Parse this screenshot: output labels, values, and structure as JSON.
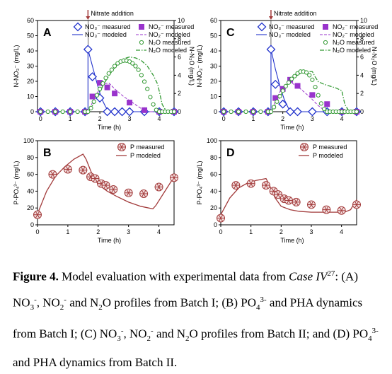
{
  "figure": {
    "nitrate_addition_label": "Nitrate addition",
    "top_xlabel": "Time (h)",
    "bottom_xlabel": "Time (h)",
    "colors": {
      "no3": "#2233cc",
      "no2": "#9933cc",
      "n2o": "#339933",
      "p": "#a23b3b"
    }
  },
  "caption": {
    "figure_label": "Figure 4.",
    "seg1": " Model evaluation with experimental data from ",
    "case": "Case IV",
    "ref": "27",
    "seg2": ": (A) NO",
    "sub3a": "3",
    "supminus_a": "-",
    "seg3": ", NO",
    "sub2a": "2",
    "supminus_b": "-",
    "seg4": " and N",
    "sub2b": "2",
    "seg5": "O profiles from Batch I; (B) PO",
    "sub4a": "4",
    "sup3a": "3-",
    "seg6": " and PHA dynamics from Batch I; (C) NO",
    "sub3b": "3",
    "supminus_c": "-",
    "seg7": ", NO",
    "sub2c": "2",
    "supminus_d": "-",
    "seg8": " and N",
    "sub2d": "2",
    "seg9": "O profiles from Batch II; and (D) PO",
    "sub4b": "4",
    "sup3b": "3-",
    "seg10": " and PHA dynamics from Batch II."
  },
  "chart_data": [
    {
      "panel": "A",
      "type": "scatter",
      "xlabel": "Time (h)",
      "ylabel_left": "N-NO₃⁻ (mg/L)",
      "ylabel_right": "N-N₂O (mg/L)",
      "xlim": [
        -0.1,
        4.5
      ],
      "ylim_left": [
        0,
        60
      ],
      "ylim_right": [
        0,
        10
      ],
      "xticks": [
        0,
        1,
        2,
        3,
        4
      ],
      "yticks_left": [
        0,
        10,
        20,
        30,
        40,
        50,
        60
      ],
      "yticks_right": [
        0,
        2,
        4,
        6,
        8,
        10
      ],
      "legend": {
        "no3_measured": "NO₃⁻ measured",
        "no3_modeled": "NO₃⁻ modeled",
        "no2_measured": "NO₂⁻ measured",
        "no2_modeled": "NO₂⁻ modeled",
        "n2o_measured": "N₂O measured",
        "n2o_modeled": "N₂O modeled"
      },
      "nitrate_addition_x": 1.6,
      "series": [
        {
          "name": "NO₃⁻ measured",
          "axis": "left",
          "x": [
            0,
            0.5,
            1.0,
            1.5,
            1.6,
            1.75,
            2.0,
            2.25,
            2.5,
            2.75,
            3.0,
            3.5,
            4.0,
            4.5
          ],
          "y": [
            0,
            0,
            0,
            0,
            41,
            23,
            9,
            0,
            0,
            0,
            0,
            0,
            0,
            0
          ]
        },
        {
          "name": "NO₃⁻ modeled",
          "axis": "left",
          "x": [
            0,
            1.6,
            1.6,
            1.75,
            1.9,
            2.05,
            2.2,
            2.35,
            4.5
          ],
          "y": [
            0,
            0,
            41,
            30,
            19,
            9,
            3,
            0,
            0
          ]
        },
        {
          "name": "NO₂⁻ measured",
          "axis": "left",
          "x": [
            0,
            0.5,
            1.0,
            1.5,
            1.75,
            2.0,
            2.25,
            2.5,
            3.0,
            3.5,
            4.0,
            4.5
          ],
          "y": [
            0,
            0,
            0,
            0,
            10,
            19,
            16,
            12,
            6,
            1,
            0,
            0
          ]
        },
        {
          "name": "NO₂⁻ modeled",
          "axis": "left",
          "x": [
            0,
            1.6,
            1.75,
            1.9,
            2.1,
            2.3,
            2.5,
            2.8,
            3.1,
            3.4,
            3.6,
            3.7,
            4.5
          ],
          "y": [
            0,
            0,
            6,
            12,
            18,
            19,
            15,
            10,
            6,
            2,
            0,
            0,
            0
          ]
        },
        {
          "name": "N₂O measured",
          "axis": "right",
          "x": [
            0,
            0.25,
            0.5,
            0.75,
            1.0,
            1.25,
            1.5,
            1.6,
            1.7,
            1.8,
            1.9,
            2.0,
            2.1,
            2.2,
            2.3,
            2.4,
            2.5,
            2.6,
            2.7,
            2.8,
            2.9,
            3.0,
            3.1,
            3.2,
            3.3,
            3.4,
            3.5,
            3.6,
            3.7,
            3.8,
            3.9,
            4.0,
            4.1,
            4.2,
            4.3,
            4.4,
            4.5
          ],
          "y": [
            0,
            0,
            0,
            0,
            0,
            0,
            0,
            0,
            0.4,
            1.1,
            1.8,
            2.5,
            3.1,
            3.7,
            4.2,
            4.6,
            5.0,
            5.3,
            5.5,
            5.6,
            5.6,
            5.5,
            5.3,
            5.0,
            4.6,
            4.0,
            3.3,
            2.5,
            1.6,
            0.8,
            0.2,
            0,
            0,
            0,
            0,
            0,
            0
          ]
        },
        {
          "name": "N₂O modeled",
          "axis": "right",
          "x": [
            0,
            1.6,
            1.8,
            2.0,
            2.2,
            2.4,
            2.6,
            2.8,
            3.0,
            3.2,
            3.4,
            3.6,
            3.8,
            3.95,
            4.1,
            4.25,
            4.5
          ],
          "y": [
            0,
            0,
            0.9,
            2.2,
            3.4,
            4.4,
            5.2,
            5.8,
            6.0,
            5.9,
            5.6,
            5.0,
            4.0,
            3.0,
            0.8,
            0,
            0
          ]
        }
      ]
    },
    {
      "panel": "B",
      "type": "scatter",
      "xlabel": "Time (h)",
      "ylabel": "P-PO₄³⁻ (mg/L)",
      "xlim": [
        0,
        4.5
      ],
      "ylim": [
        0,
        100
      ],
      "xticks": [
        0,
        1,
        2,
        3,
        4
      ],
      "yticks": [
        0,
        20,
        40,
        60,
        80,
        100
      ],
      "legend": {
        "p_measured": "P measured",
        "p_modeled": "P modeled"
      },
      "series": [
        {
          "name": "P measured",
          "x": [
            0,
            0.5,
            1.0,
            1.5,
            1.75,
            1.9,
            2.1,
            2.25,
            2.5,
            3.0,
            3.5,
            4.0,
            4.5
          ],
          "y": [
            12,
            60,
            66,
            65,
            57,
            55,
            49,
            47,
            42,
            38,
            37,
            45,
            56
          ]
        },
        {
          "name": "P modeled",
          "x": [
            0,
            0.3,
            0.6,
            0.9,
            1.2,
            1.5,
            1.6,
            1.8,
            2.0,
            2.3,
            2.6,
            3.0,
            3.4,
            3.8,
            3.9,
            4.2,
            4.5
          ],
          "y": [
            13,
            40,
            58,
            69,
            78,
            84,
            78,
            60,
            48,
            40,
            34,
            27,
            22,
            19,
            23,
            40,
            57
          ]
        }
      ]
    },
    {
      "panel": "C",
      "type": "scatter",
      "xlabel": "Time (h)",
      "ylabel_left": "N-NO₃⁻ (mg/L)",
      "ylabel_right": "N-N₂O (mg/L)",
      "xlim": [
        -0.1,
        4.5
      ],
      "ylim_left": [
        0,
        60
      ],
      "ylim_right": [
        0,
        10
      ],
      "xticks": [
        0,
        1,
        2,
        3,
        4
      ],
      "yticks_left": [
        0,
        10,
        20,
        30,
        40,
        50,
        60
      ],
      "yticks_right": [
        0,
        2,
        4,
        6,
        8,
        10
      ],
      "legend": {
        "no3_measured": "NO₃⁻ measured",
        "no3_modeled": "NO₃⁻ modeled",
        "no2_measured": "NO₂⁻ measured",
        "no2_modeled": "NO₂⁻ modeled",
        "n2o_measured": "N₂O measured",
        "n2o_modeled": "N₂O modeled"
      },
      "nitrate_addition_x": 1.6,
      "series": [
        {
          "name": "NO₃⁻ measured",
          "axis": "left",
          "x": [
            0,
            0.5,
            1.0,
            1.5,
            1.6,
            1.75,
            2.0,
            2.25,
            2.5,
            3.0,
            3.5,
            4.0,
            4.5
          ],
          "y": [
            0,
            0,
            0,
            0,
            41,
            18,
            5,
            0,
            0,
            0,
            0,
            0,
            0
          ]
        },
        {
          "name": "NO₃⁻ modeled",
          "axis": "left",
          "x": [
            0,
            1.6,
            1.6,
            1.75,
            1.9,
            2.05,
            2.2,
            2.35,
            4.5
          ],
          "y": [
            0,
            0,
            41,
            28,
            17,
            8,
            2,
            0,
            0
          ]
        },
        {
          "name": "NO₂⁻ measured",
          "axis": "left",
          "x": [
            0,
            0.5,
            1.0,
            1.5,
            1.75,
            2.0,
            2.25,
            2.5,
            3.0,
            3.5,
            4.0,
            4.5
          ],
          "y": [
            0,
            0,
            0,
            0,
            9,
            15,
            21,
            17,
            11,
            5,
            0,
            0
          ]
        },
        {
          "name": "NO₂⁻ modeled",
          "axis": "left",
          "x": [
            0,
            1.6,
            1.75,
            1.9,
            2.1,
            2.3,
            2.6,
            2.9,
            3.2,
            3.4,
            3.5,
            4.5
          ],
          "y": [
            0,
            0,
            7,
            13,
            18,
            19,
            15,
            10,
            4,
            1,
            0,
            0
          ]
        },
        {
          "name": "N₂O measured",
          "axis": "right",
          "x": [
            0,
            0.25,
            0.5,
            0.75,
            1.0,
            1.25,
            1.5,
            1.6,
            1.7,
            1.8,
            1.9,
            2.0,
            2.1,
            2.2,
            2.3,
            2.4,
            2.5,
            2.6,
            2.7,
            2.8,
            2.9,
            3.0,
            3.1,
            3.2,
            3.3,
            3.4,
            3.5,
            3.6,
            3.7,
            3.8,
            3.9,
            4.0,
            4.1,
            4.2,
            4.3,
            4.4,
            4.5
          ],
          "y": [
            0,
            0,
            0,
            0,
            0,
            0,
            0,
            0,
            0.5,
            1.1,
            1.7,
            2.3,
            2.8,
            3.2,
            3.6,
            3.9,
            4.2,
            4.4,
            4.4,
            4.3,
            4.0,
            3.5,
            2.7,
            1.8,
            0.9,
            0.3,
            0,
            0,
            0,
            0,
            0,
            0,
            0,
            0,
            0,
            0,
            0
          ]
        },
        {
          "name": "N₂O modeled",
          "axis": "right",
          "x": [
            0,
            1.6,
            1.8,
            2.0,
            2.2,
            2.4,
            2.6,
            2.8,
            3.0,
            3.1,
            3.2,
            3.4,
            3.6,
            3.8,
            4.0,
            4.1,
            4.25,
            4.5
          ],
          "y": [
            0,
            0,
            1.0,
            2.2,
            3.2,
            3.8,
            4.2,
            4.4,
            4.4,
            3.8,
            3.3,
            3.0,
            2.8,
            2.6,
            2.3,
            0.8,
            0,
            0
          ]
        }
      ]
    },
    {
      "panel": "D",
      "type": "scatter",
      "xlabel": "Time (h)",
      "ylabel": "P-PO₄³⁻ (mg/L)",
      "xlim": [
        0,
        4.5
      ],
      "ylim": [
        0,
        100
      ],
      "xticks": [
        0,
        1,
        2,
        3,
        4
      ],
      "yticks": [
        0,
        20,
        40,
        60,
        80,
        100
      ],
      "legend": {
        "p_measured": "P measured",
        "p_modeled": "P modeled"
      },
      "series": [
        {
          "name": "P measured",
          "x": [
            0,
            0.5,
            1.0,
            1.5,
            1.75,
            1.9,
            2.1,
            2.25,
            2.5,
            3.0,
            3.5,
            4.0,
            4.5
          ],
          "y": [
            8,
            47,
            49,
            47,
            40,
            36,
            31,
            29,
            27,
            24,
            18,
            17,
            24
          ]
        },
        {
          "name": "P modeled",
          "x": [
            0,
            0.3,
            0.6,
            0.9,
            1.2,
            1.5,
            1.6,
            1.8,
            2.0,
            2.3,
            2.6,
            3.0,
            3.4,
            3.8,
            4.1,
            4.3,
            4.5
          ],
          "y": [
            12,
            32,
            44,
            50,
            53,
            55,
            48,
            32,
            22,
            18,
            16,
            15,
            15,
            15,
            15,
            18,
            30
          ]
        }
      ]
    }
  ]
}
